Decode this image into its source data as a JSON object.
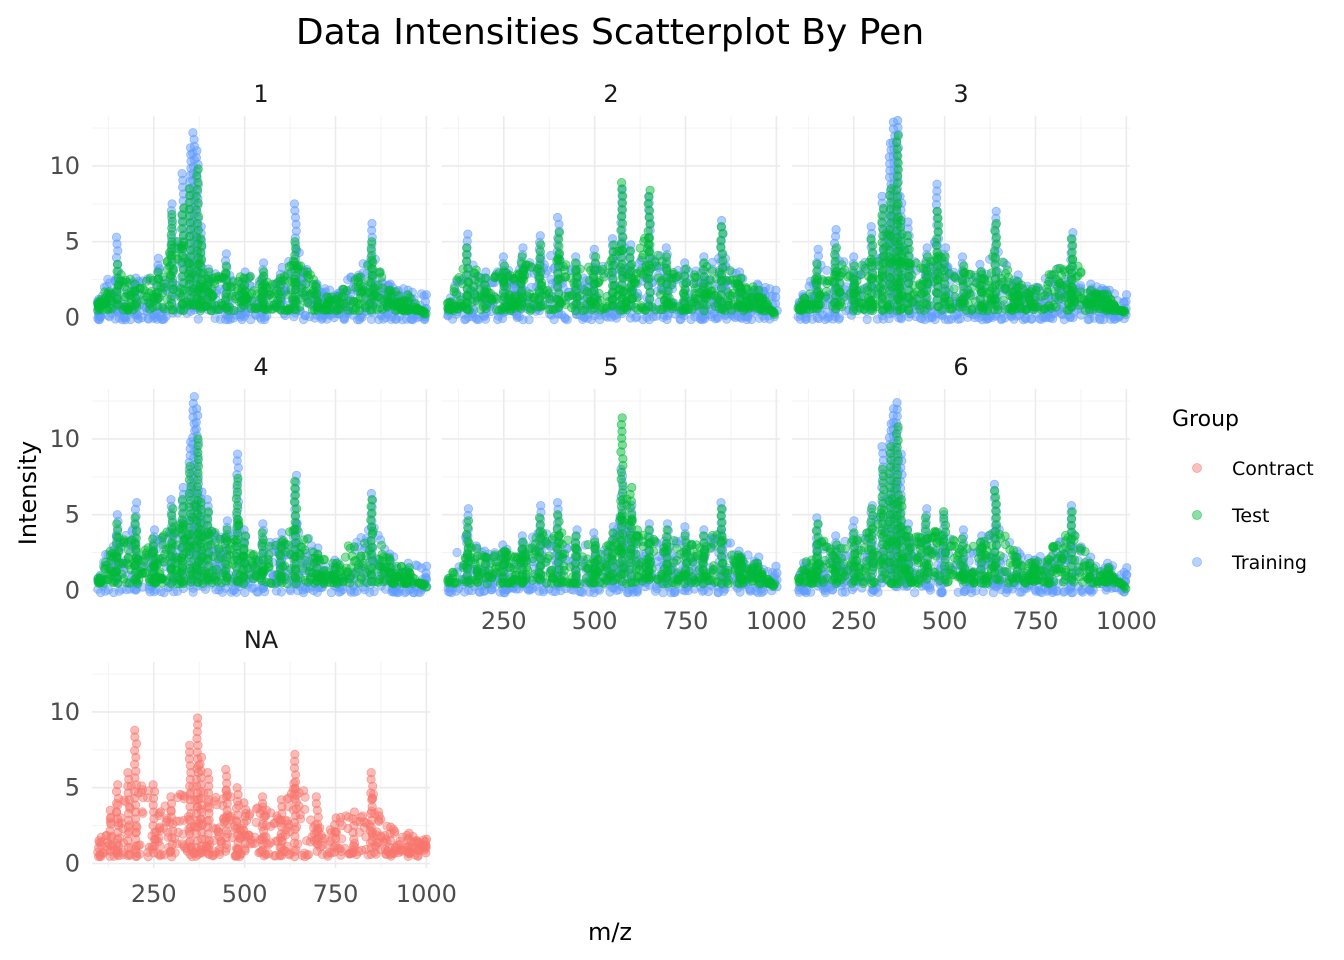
{
  "chart_data": {
    "type": "scatter",
    "title": "Data Intensities Scatterplot By Pen",
    "xlabel": "m/z",
    "ylabel": "Intensity",
    "xlim": [
      80,
      1010
    ],
    "ylim": [
      -0.3,
      13.3
    ],
    "x_ticks": [
      250,
      500,
      750,
      1000
    ],
    "x_tick_labels": [
      "250",
      "500",
      "750",
      "1000"
    ],
    "y_ticks": [
      0,
      5,
      10
    ],
    "y_tick_labels": [
      "0",
      "5",
      "10"
    ],
    "grid": true,
    "facet_variable": "Pen",
    "facets": [
      "1",
      "2",
      "3",
      "4",
      "5",
      "6",
      "NA"
    ],
    "legend": {
      "title": "Group",
      "position": "right",
      "entries": [
        {
          "name": "Contract",
          "color": "#F8766D"
        },
        {
          "name": "Test",
          "color": "#00BA38"
        },
        {
          "name": "Training",
          "color": "#619CFF"
        }
      ]
    },
    "series": [
      {
        "facet": "1",
        "name": "Training",
        "x": [
          100,
          150,
          200,
          260,
          300,
          330,
          350,
          360,
          370,
          380,
          400,
          450,
          500,
          550,
          600,
          640,
          700,
          760,
          850,
          900,
          950,
          1000
        ],
        "y": [
          1.2,
          5.3,
          2.6,
          3.9,
          7.5,
          9.5,
          11.2,
          12.2,
          11.0,
          6.0,
          3.2,
          4.2,
          3.0,
          3.6,
          3.3,
          7.5,
          2.2,
          1.6,
          6.2,
          2.2,
          1.8,
          1.5
        ]
      },
      {
        "facet": "1",
        "name": "Test",
        "x": [
          100,
          150,
          200,
          260,
          300,
          330,
          350,
          370,
          380,
          400,
          450,
          500,
          550,
          600,
          640,
          700,
          760,
          850,
          900,
          950,
          1000
        ],
        "y": [
          1.0,
          3.5,
          2.2,
          3.0,
          6.8,
          7.2,
          8.5,
          9.8,
          5.2,
          3.0,
          3.4,
          2.6,
          3.0,
          2.6,
          5.0,
          2.0,
          1.4,
          5.0,
          1.8,
          1.5,
          0.0
        ]
      },
      {
        "facet": "2",
        "name": "Training",
        "x": [
          100,
          150,
          200,
          250,
          300,
          350,
          400,
          450,
          500,
          550,
          575,
          600,
          650,
          700,
          750,
          800,
          850,
          900,
          950,
          1000
        ],
        "y": [
          1.0,
          5.5,
          3.0,
          4.0,
          4.6,
          5.4,
          6.6,
          4.0,
          4.5,
          5.2,
          8.5,
          4.8,
          8.0,
          4.6,
          3.6,
          4.0,
          6.4,
          3.0,
          2.2,
          1.8
        ]
      },
      {
        "facet": "2",
        "name": "Test",
        "x": [
          100,
          150,
          200,
          250,
          300,
          350,
          400,
          450,
          500,
          550,
          575,
          600,
          650,
          700,
          750,
          800,
          850,
          900,
          950,
          1000
        ],
        "y": [
          1.0,
          4.6,
          2.6,
          3.4,
          4.0,
          4.8,
          5.6,
          3.6,
          4.0,
          4.8,
          8.9,
          4.4,
          8.4,
          4.0,
          3.2,
          3.6,
          6.0,
          2.6,
          1.8,
          0.0
        ]
      },
      {
        "facet": "3",
        "name": "Training",
        "x": [
          100,
          150,
          200,
          250,
          300,
          330,
          350,
          360,
          370,
          380,
          400,
          450,
          480,
          500,
          550,
          600,
          640,
          700,
          750,
          850,
          900,
          950,
          1000
        ],
        "y": [
          1.0,
          4.5,
          5.8,
          4.0,
          6.0,
          8.0,
          11.5,
          12.9,
          13.0,
          8.0,
          6.3,
          4.6,
          8.8,
          4.6,
          4.0,
          3.5,
          7.0,
          2.8,
          2.0,
          5.6,
          2.2,
          1.8,
          1.5
        ]
      },
      {
        "facet": "3",
        "name": "Test",
        "x": [
          100,
          150,
          200,
          250,
          300,
          330,
          350,
          370,
          380,
          400,
          450,
          480,
          500,
          550,
          600,
          640,
          700,
          750,
          850,
          900,
          950,
          1000
        ],
        "y": [
          0.8,
          3.5,
          4.6,
          3.4,
          5.2,
          7.2,
          8.5,
          12.0,
          6.4,
          5.4,
          4.0,
          7.0,
          4.0,
          3.4,
          3.0,
          6.2,
          2.4,
          1.8,
          5.2,
          1.8,
          1.5,
          0.0
        ]
      },
      {
        "facet": "4",
        "name": "Training",
        "x": [
          100,
          150,
          200,
          250,
          300,
          330,
          350,
          360,
          370,
          380,
          400,
          450,
          480,
          500,
          550,
          600,
          640,
          700,
          750,
          850,
          900,
          950,
          1000
        ],
        "y": [
          1.0,
          5.0,
          5.8,
          4.0,
          6.0,
          6.8,
          9.8,
          12.8,
          12.0,
          6.5,
          6.0,
          4.6,
          9.0,
          4.0,
          4.4,
          3.8,
          7.6,
          2.8,
          2.0,
          6.4,
          2.4,
          1.8,
          1.6
        ]
      },
      {
        "facet": "4",
        "name": "Test",
        "x": [
          100,
          150,
          200,
          250,
          300,
          330,
          350,
          370,
          380,
          400,
          450,
          480,
          500,
          550,
          600,
          640,
          700,
          750,
          850,
          900,
          950,
          1000
        ],
        "y": [
          0.8,
          4.4,
          4.8,
          3.4,
          5.4,
          6.0,
          8.2,
          10.0,
          5.8,
          5.2,
          4.0,
          7.4,
          3.6,
          3.8,
          3.2,
          7.2,
          2.4,
          1.8,
          6.0,
          2.0,
          1.5,
          0.0
        ]
      },
      {
        "facet": "5",
        "name": "Training",
        "x": [
          100,
          150,
          200,
          250,
          300,
          350,
          400,
          450,
          500,
          550,
          575,
          600,
          650,
          700,
          750,
          800,
          850,
          900,
          950,
          1000
        ],
        "y": [
          0.8,
          5.4,
          2.6,
          3.0,
          3.6,
          5.6,
          5.8,
          4.0,
          3.8,
          4.2,
          8.0,
          5.6,
          4.4,
          4.4,
          4.2,
          4.0,
          5.8,
          2.6,
          2.2,
          1.6
        ]
      },
      {
        "facet": "5",
        "name": "Test",
        "x": [
          100,
          150,
          200,
          250,
          300,
          350,
          400,
          450,
          500,
          550,
          575,
          600,
          650,
          700,
          750,
          800,
          850,
          900,
          950,
          1000
        ],
        "y": [
          0.8,
          4.6,
          2.2,
          2.6,
          3.2,
          4.8,
          5.0,
          3.6,
          3.2,
          3.8,
          11.4,
          6.8,
          4.0,
          4.0,
          3.6,
          3.6,
          5.4,
          2.2,
          1.8,
          0.0
        ]
      },
      {
        "facet": "6",
        "name": "Training",
        "x": [
          100,
          150,
          200,
          250,
          300,
          330,
          350,
          360,
          370,
          380,
          400,
          450,
          500,
          550,
          600,
          640,
          700,
          750,
          850,
          900,
          950,
          1000
        ],
        "y": [
          1.0,
          4.8,
          3.6,
          4.6,
          5.6,
          9.5,
          11.0,
          12.0,
          12.4,
          9.0,
          4.4,
          5.4,
          5.0,
          4.0,
          3.6,
          7.0,
          2.6,
          2.0,
          5.6,
          2.2,
          1.8,
          1.5
        ]
      },
      {
        "facet": "6",
        "name": "Test",
        "x": [
          100,
          150,
          200,
          250,
          300,
          330,
          350,
          370,
          380,
          400,
          450,
          500,
          550,
          600,
          640,
          700,
          750,
          850,
          900,
          950,
          1000
        ],
        "y": [
          0.8,
          4.4,
          3.0,
          3.8,
          5.4,
          8.0,
          9.5,
          10.8,
          6.0,
          4.0,
          4.8,
          5.2,
          3.4,
          3.2,
          6.6,
          2.2,
          1.8,
          5.2,
          1.8,
          1.5,
          0.0
        ]
      },
      {
        "facet": "NA",
        "name": "Contract",
        "x": [
          100,
          130,
          150,
          180,
          200,
          250,
          300,
          350,
          370,
          380,
          400,
          450,
          480,
          500,
          550,
          600,
          640,
          700,
          750,
          800,
          850,
          900,
          950,
          1000
        ],
        "y": [
          1.5,
          3.5,
          5.2,
          6.0,
          8.8,
          5.2,
          4.4,
          7.8,
          9.6,
          7.0,
          6.0,
          6.2,
          5.0,
          4.0,
          4.4,
          4.2,
          7.2,
          4.4,
          3.0,
          3.4,
          6.0,
          2.4,
          2.0,
          1.6
        ]
      }
    ]
  }
}
